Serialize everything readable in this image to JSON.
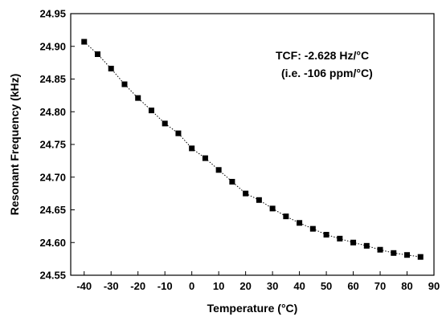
{
  "chart_data": {
    "type": "line",
    "title": "",
    "xlabel": "Temperature (°C)",
    "ylabel": "Resonant Frequency (kHz)",
    "xlim": [
      -45,
      90
    ],
    "ylim": [
      24.55,
      24.95
    ],
    "xticks": [
      -40,
      -30,
      -20,
      -10,
      0,
      10,
      20,
      30,
      40,
      50,
      60,
      70,
      80,
      90
    ],
    "yticks": [
      24.55,
      24.6,
      24.65,
      24.7,
      24.75,
      24.8,
      24.85,
      24.9,
      24.95
    ],
    "ytick_decimals": 2,
    "grid": false,
    "marker": "square",
    "line_style": "dotted",
    "series_color": "#000000",
    "annotations": [
      "TCF: -2.628 Hz/°C",
      "(i.e. -106 ppm/°C)"
    ],
    "series": [
      {
        "x": [
          -40,
          -35,
          -30,
          -25,
          -20,
          -15,
          -10,
          -5,
          0,
          5,
          10,
          15,
          20,
          25,
          30,
          35,
          40,
          45,
          50,
          55,
          60,
          65,
          70,
          75,
          80,
          85
        ],
        "y": [
          24.907,
          24.888,
          24.866,
          24.842,
          24.821,
          24.802,
          24.782,
          24.767,
          24.744,
          24.729,
          24.711,
          24.693,
          24.675,
          24.665,
          24.652,
          24.64,
          24.63,
          24.621,
          24.612,
          24.606,
          24.6,
          24.595,
          24.589,
          24.584,
          24.581,
          24.578
        ]
      }
    ]
  }
}
